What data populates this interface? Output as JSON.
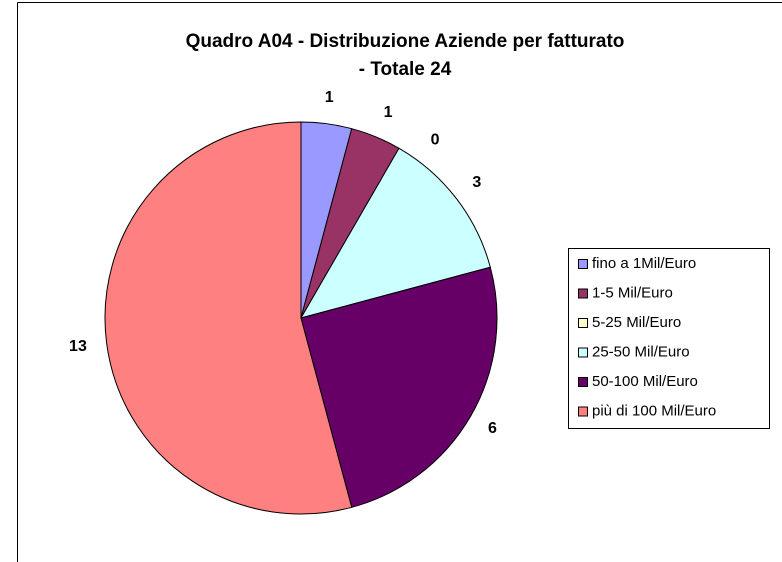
{
  "chart_data": {
    "type": "pie",
    "title": [
      "Quadro A04 - Distribuzione Aziende per fatturato",
      "- Totale 24"
    ],
    "categories": [
      "fino a 1Mil/Euro",
      "1-5 Mil/Euro",
      "5-25 Mil/Euro",
      "25-50 Mil/Euro",
      "50-100 Mil/Euro",
      "più di 100 Mil/Euro"
    ],
    "values": [
      1,
      1,
      0,
      3,
      6,
      13
    ],
    "colors": [
      "#9999ff",
      "#993366",
      "#ffffcc",
      "#ccffff",
      "#660066",
      "#ff8080"
    ],
    "legend": "right"
  }
}
